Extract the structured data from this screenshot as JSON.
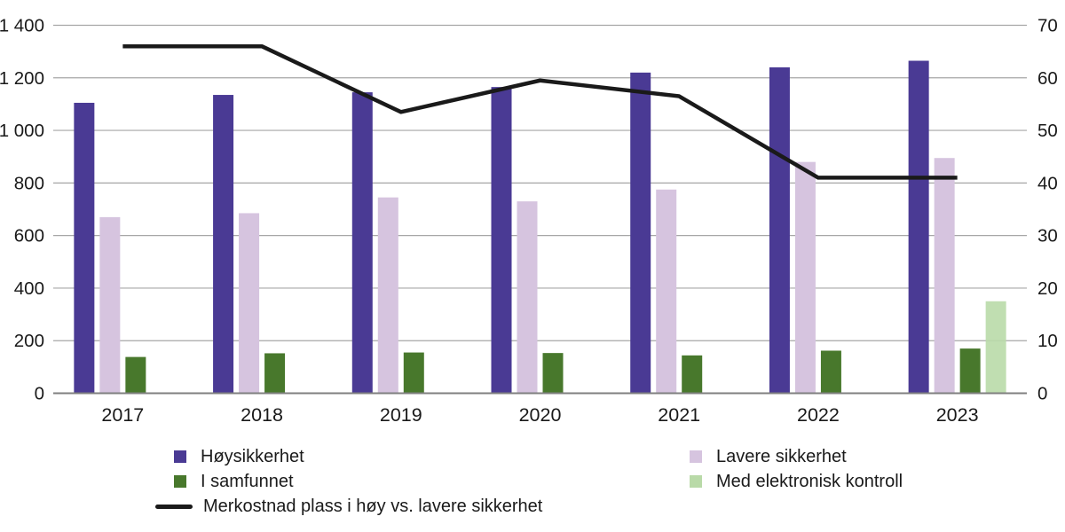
{
  "chart_data": {
    "type": "bar",
    "subtype": "grouped-bars-with-line-overlay",
    "categories": [
      "2017",
      "2018",
      "2019",
      "2020",
      "2021",
      "2022",
      "2023"
    ],
    "series": [
      {
        "name": "Høysikkerhet",
        "type": "bar",
        "axis": "left",
        "color": "#4A3A94",
        "values": [
          1105,
          1135,
          1145,
          1165,
          1220,
          1240,
          1265
        ]
      },
      {
        "name": "Lavere sikkerhet",
        "type": "bar",
        "axis": "left",
        "color": "#D6C4DF",
        "values": [
          670,
          685,
          745,
          730,
          775,
          880,
          895
        ]
      },
      {
        "name": "I samfunnet",
        "type": "bar",
        "axis": "left",
        "color": "#48782C",
        "values": [
          138,
          152,
          155,
          153,
          144,
          162,
          170
        ]
      },
      {
        "name": "Med elektronisk kontroll",
        "type": "bar",
        "axis": "left",
        "color": "#B9DAA8",
        "values": [
          null,
          null,
          null,
          null,
          null,
          null,
          350
        ]
      },
      {
        "name": "Merkostnad plass i høy vs. lavere sikkerhet",
        "type": "line",
        "axis": "right",
        "color": "#1A1A1A",
        "values": [
          66,
          66,
          53.5,
          59.5,
          56.5,
          41,
          41
        ]
      }
    ],
    "left_axis": {
      "min": 0,
      "max": 1400,
      "step": 200,
      "tick_labels": [
        "0",
        "200",
        "400",
        "600",
        "800",
        "1 000",
        "1 200",
        "1 400"
      ]
    },
    "right_axis": {
      "min": 0,
      "max": 70,
      "step": 10,
      "tick_labels": [
        "0",
        "10",
        "20",
        "30",
        "40",
        "50",
        "60",
        "70"
      ]
    },
    "grid": true,
    "gridline_color": "#A6A6A6",
    "baseline_color": "#7F7F7F",
    "text_color": "#1A1A1A",
    "legend_position": "bottom-two-columns"
  }
}
